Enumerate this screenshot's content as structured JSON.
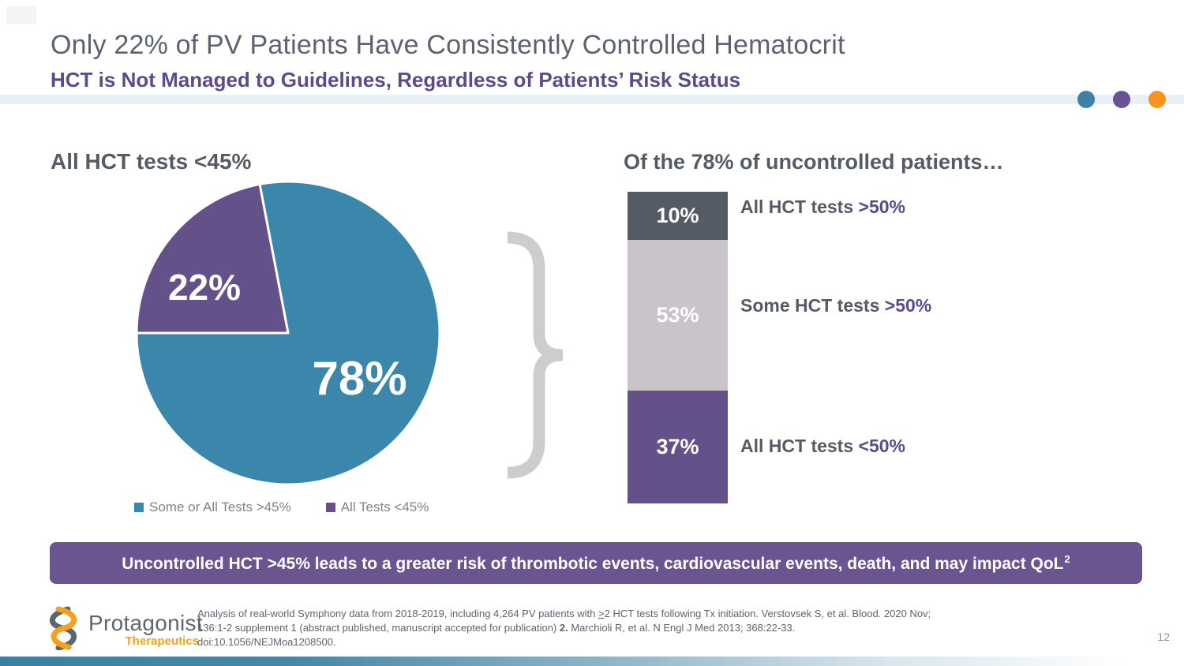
{
  "slide": {
    "title": "Only 22% of PV Patients Have Consistently Controlled Hematocrit",
    "subtitle": "HCT is Not Managed to Guidelines, Regardless of Patients’ Risk Status",
    "page_number": "12",
    "accent_dots": [
      {
        "name": "teal",
        "color": "#3d82a4"
      },
      {
        "name": "purple",
        "color": "#6a5195"
      },
      {
        "name": "orange",
        "color": "#f7941d"
      }
    ],
    "accent_band_color": "#e9f0f7"
  },
  "chart_data": [
    {
      "type": "pie",
      "title": "All HCT tests <45%",
      "start_angle_deg": 349.2,
      "divider_color": "#ffffff",
      "slices": [
        {
          "label": "78%",
          "value": 78,
          "color": "#3b86ab",
          "legend": "Some or All Tests >45%"
        },
        {
          "label": "22%",
          "value": 22,
          "color": "#655189",
          "legend": "All Tests <45%"
        }
      ],
      "legend_position": "bottom"
    },
    {
      "type": "bar",
      "stacked": true,
      "title": "Of the 78% of uncontrolled patients…",
      "segments": [
        {
          "label": "10%",
          "value": 10,
          "color": "#555b65",
          "annotation_prefix": "All HCT tests ",
          "annotation_suffix": ">50%"
        },
        {
          "label": "53%",
          "value": 53,
          "color": "#c8c4c9",
          "annotation_prefix": "Some HCT tests ",
          "annotation_suffix": ">50%"
        },
        {
          "label": "37%",
          "value": 37,
          "color": "#655189",
          "annotation_prefix": "All HCT tests ",
          "annotation_suffix": "<50%"
        }
      ]
    }
  ],
  "banner": {
    "text": "Uncontrolled HCT >45% leads to a greater risk of thrombotic events, cardiovascular events, death, and may impact QoL",
    "superscript": "2",
    "color": "#6a5591"
  },
  "footer": {
    "logo": {
      "name": "Protagonist",
      "sub_name": "Therapeutics",
      "icon": "helix-icon"
    },
    "citation": {
      "line1_pre": "Analysis of real-world Symphony data from 2018-2019, including 4,264 PV patients with ",
      "line1_geq": ">",
      "line1_post": "2 HCT tests following Tx initiation. Verstovsek S, et al. Blood. 2020 Nov;",
      "line2_pre": "136:1-2 supplement 1 (abstract published, manuscript accepted for publication) ",
      "line2_ref": "2.",
      "line2_post": " Marchioli R, et al. N Engl J Med 2013; 368:22-33.",
      "line3": "doi:10.1056/NEJMoa1208500."
    }
  }
}
